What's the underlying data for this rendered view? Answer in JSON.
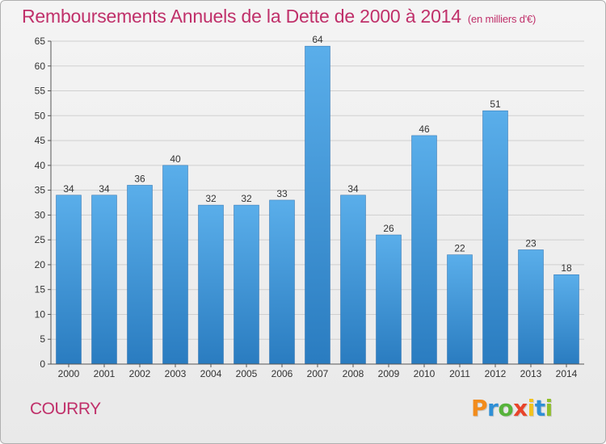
{
  "header": {
    "title": "Remboursements Annuels de la Dette de 2000 à 2014",
    "unit_note": "(en milliers d'€)"
  },
  "footer": {
    "commune": "COURRY",
    "logo_text": "Proxiti",
    "logo_colors": [
      "#f28c1c",
      "#2e8fd6",
      "#57b33b",
      "#e8442a",
      "#f2c21c",
      "#2e8fd6",
      "#8fbf2a"
    ]
  },
  "chart_data": {
    "type": "bar",
    "title": "Remboursements Annuels de la Dette de 2000 à 2014",
    "xlabel": "",
    "ylabel": "",
    "categories": [
      "2000",
      "2001",
      "2002",
      "2003",
      "2004",
      "2005",
      "2006",
      "2007",
      "2008",
      "2009",
      "2010",
      "2011",
      "2012",
      "2013",
      "2014"
    ],
    "values": [
      34,
      34,
      36,
      40,
      32,
      32,
      33,
      64,
      34,
      26,
      46,
      22,
      51,
      23,
      18
    ],
    "ylim": [
      0,
      65
    ],
    "yticks": [
      0,
      5,
      10,
      15,
      20,
      25,
      30,
      35,
      40,
      45,
      50,
      55,
      60,
      65
    ],
    "grid": true,
    "bar_color_top": "#5aaeea",
    "bar_color_bottom": "#2a7cc0",
    "grid_color": "#cfcfcf"
  }
}
